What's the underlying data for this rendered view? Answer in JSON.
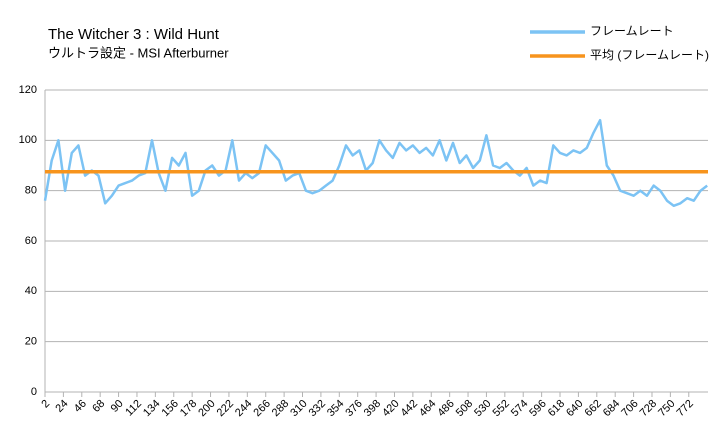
{
  "chart_data": {
    "type": "line",
    "title": "The Witcher 3 : Wild Hunt",
    "subtitle": "ウルトラ設定  - MSI Afterburner",
    "x": [
      2,
      10,
      18,
      26,
      34,
      42,
      50,
      58,
      66,
      74,
      82,
      90,
      98,
      106,
      114,
      122,
      130,
      138,
      146,
      154,
      162,
      170,
      178,
      186,
      194,
      202,
      210,
      218,
      226,
      234,
      242,
      250,
      258,
      266,
      274,
      282,
      290,
      298,
      306,
      314,
      322,
      330,
      338,
      346,
      354,
      362,
      370,
      378,
      386,
      394,
      402,
      410,
      418,
      426,
      434,
      442,
      450,
      458,
      466,
      474,
      482,
      490,
      498,
      506,
      514,
      522,
      530,
      538,
      546,
      554,
      562,
      570,
      578,
      586,
      594,
      602,
      610,
      618,
      626,
      634,
      642,
      650,
      658,
      666,
      674,
      682,
      690,
      698,
      706,
      714,
      722,
      730,
      738,
      746,
      754,
      762,
      770,
      778,
      786,
      794
    ],
    "series": [
      {
        "name": "フレームレート",
        "color": "#7cc3f4",
        "values": [
          76,
          92,
          100,
          80,
          95,
          98,
          86,
          88,
          86,
          75,
          78,
          82,
          83,
          84,
          86,
          87,
          100,
          87,
          80,
          93,
          90,
          95,
          78,
          80,
          88,
          90,
          86,
          88,
          100,
          84,
          87,
          85,
          87,
          98,
          95,
          92,
          84,
          86,
          87,
          80,
          79,
          80,
          82,
          84,
          90,
          98,
          94,
          96,
          88,
          91,
          100,
          96,
          93,
          99,
          96,
          98,
          95,
          97,
          94,
          100,
          92,
          99,
          91,
          94,
          89,
          92,
          102,
          90,
          89,
          91,
          88,
          86,
          89,
          82,
          84,
          83,
          98,
          95,
          94,
          96,
          95,
          97,
          103,
          108,
          90,
          86,
          80,
          79,
          78,
          80,
          78,
          82,
          80,
          76,
          74,
          75,
          77,
          76,
          80,
          82
        ]
      },
      {
        "name": "平均 (フレームレート)",
        "color": "#f7941d",
        "x": [
          2,
          795
        ],
        "values": [
          87.5,
          87.5
        ]
      }
    ],
    "xlim": [
      2,
      795
    ],
    "xticks": [
      2,
      24,
      46,
      68,
      90,
      112,
      134,
      156,
      178,
      200,
      222,
      244,
      266,
      288,
      310,
      332,
      354,
      376,
      398,
      420,
      442,
      464,
      486,
      508,
      530,
      552,
      574,
      596,
      618,
      640,
      662,
      684,
      706,
      728,
      750,
      772
    ],
    "ylim": [
      0,
      120
    ],
    "yticks": [
      0,
      20,
      40,
      60,
      80,
      100,
      120
    ],
    "grid": true
  }
}
